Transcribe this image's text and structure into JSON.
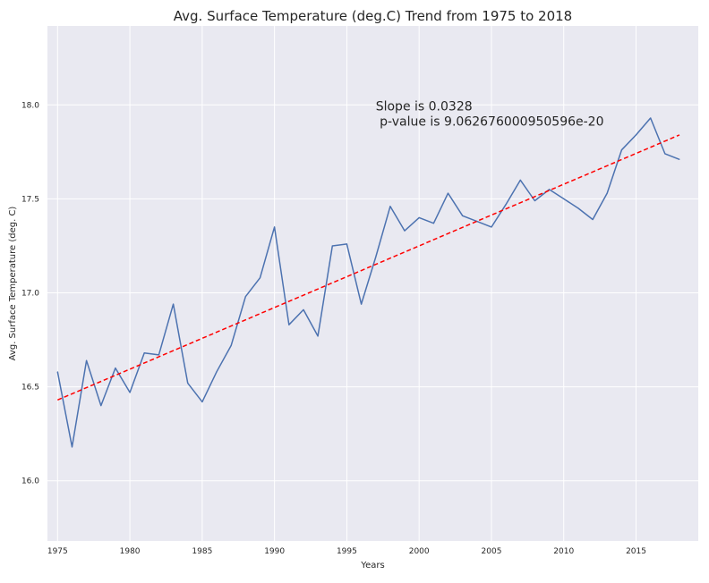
{
  "chart_data": {
    "type": "line",
    "title": "Avg. Surface Temperature (deg.C) Trend from 1975 to 2018",
    "xlabel": "Years",
    "ylabel": "Avg. Surface Temperature (deg. C)",
    "xlim": [
      1974.3,
      2019.3
    ],
    "ylim": [
      15.68,
      18.42
    ],
    "xticks": [
      1975,
      1980,
      1985,
      1990,
      1995,
      2000,
      2005,
      2010,
      2015
    ],
    "xtick_labels": [
      "1975",
      "1980",
      "1985",
      "1990",
      "1995",
      "2000",
      "2005",
      "2010",
      "2015"
    ],
    "yticks": [
      16.0,
      16.5,
      17.0,
      17.5,
      18.0
    ],
    "ytick_labels": [
      "16.0",
      "16.5",
      "17.0",
      "17.5",
      "18.0"
    ],
    "grid": true,
    "background": "#e9e9f1",
    "series": [
      {
        "style": "solid",
        "color": "#4c72b0",
        "x": [
          1975,
          1976,
          1977,
          1978,
          1979,
          1980,
          1981,
          1982,
          1983,
          1984,
          1985,
          1986,
          1987,
          1988,
          1989,
          1990,
          1991,
          1992,
          1993,
          1994,
          1995,
          1996,
          1997,
          1998,
          1999,
          2000,
          2001,
          2002,
          2003,
          2004,
          2005,
          2006,
          2007,
          2008,
          2009,
          2010,
          2011,
          2012,
          2013,
          2014,
          2015,
          2016,
          2017,
          2018
        ],
        "y": [
          16.58,
          16.18,
          16.64,
          16.4,
          16.6,
          16.47,
          16.68,
          16.67,
          16.94,
          16.52,
          16.42,
          16.58,
          16.72,
          16.98,
          17.08,
          17.35,
          16.83,
          16.91,
          16.77,
          17.25,
          17.26,
          16.94,
          17.19,
          17.46,
          17.33,
          17.4,
          17.37,
          17.53,
          17.41,
          17.38,
          17.35,
          17.47,
          17.6,
          17.49,
          17.55,
          17.5,
          17.45,
          17.39,
          17.53,
          17.76,
          17.84,
          17.93,
          17.74,
          17.71
        ]
      },
      {
        "style": "dashed",
        "color": "#ff0000",
        "x": [
          1975,
          2018
        ],
        "y": [
          16.43,
          17.84
        ]
      }
    ],
    "annotation": {
      "line1": "Slope is 0.0328",
      "line2": " p-value is 9.062676000950596e-20",
      "x": 1997,
      "y": 17.97
    }
  }
}
